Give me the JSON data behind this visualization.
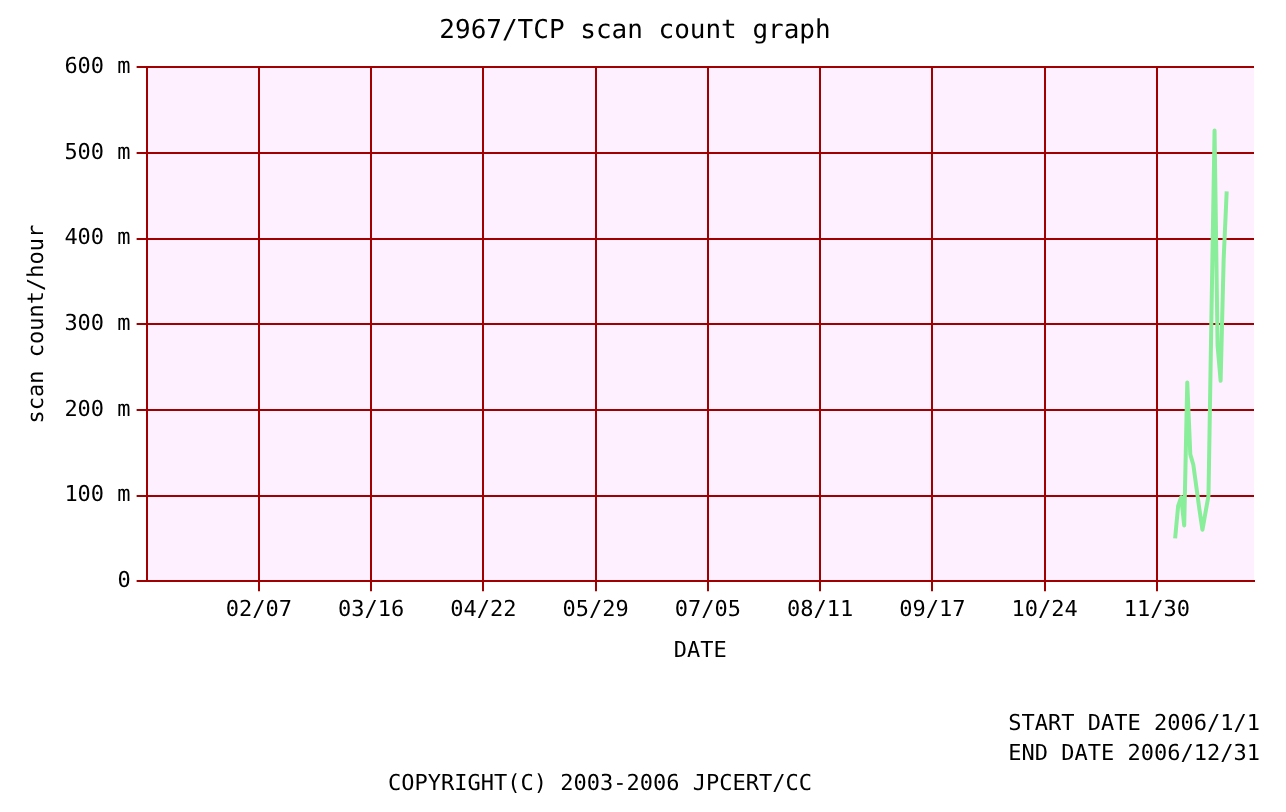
{
  "chart_data": {
    "type": "line",
    "title": "2967/TCP scan count graph",
    "xlabel": "DATE",
    "ylabel": "scan count/hour",
    "x": [
      "2006-12-06",
      "2006-12-07",
      "2006-12-08",
      "2006-12-09",
      "2006-12-10",
      "2006-12-11",
      "2006-12-12",
      "2006-12-14",
      "2006-12-15",
      "2006-12-17",
      "2006-12-18",
      "2006-12-19",
      "2006-12-20",
      "2006-12-21",
      "2006-12-22",
      "2006-12-23"
    ],
    "series": [
      {
        "color": "#88ee99",
        "values": [
          50,
          88,
          98,
          65,
          232,
          148,
          136,
          84,
          60,
          100,
          316,
          526,
          275,
          234,
          376,
          455
        ]
      }
    ],
    "xlim": [
      "2006-01-01",
      "2007-01-01"
    ],
    "xticks": [
      {
        "value": "2006-02-07",
        "label": "02/07"
      },
      {
        "value": "2006-03-16",
        "label": "03/16"
      },
      {
        "value": "2006-04-22",
        "label": "04/22"
      },
      {
        "value": "2006-05-29",
        "label": "05/29"
      },
      {
        "value": "2006-07-05",
        "label": "07/05"
      },
      {
        "value": "2006-08-11",
        "label": "08/11"
      },
      {
        "value": "2006-09-17",
        "label": "09/17"
      },
      {
        "value": "2006-10-24",
        "label": "10/24"
      },
      {
        "value": "2006-11-30",
        "label": "11/30"
      }
    ],
    "ylim": [
      0,
      600
    ],
    "yticks": [
      0,
      {
        "value": 100,
        "label": "100 m"
      },
      {
        "value": 200,
        "label": "200 m"
      },
      {
        "value": 300,
        "label": "300 m"
      },
      {
        "value": 400,
        "label": "400 m"
      },
      {
        "value": 500,
        "label": "500 m"
      },
      {
        "value": 600,
        "label": "600 m"
      }
    ],
    "grid": true,
    "legend": false,
    "marker": "none",
    "line_style": "solid",
    "annotations": [
      "START DATE 2006/1/1",
      "END DATE 2006/12/31",
      "COPYRIGHT(C) 2003-2006 JPCERT/CC"
    ]
  }
}
